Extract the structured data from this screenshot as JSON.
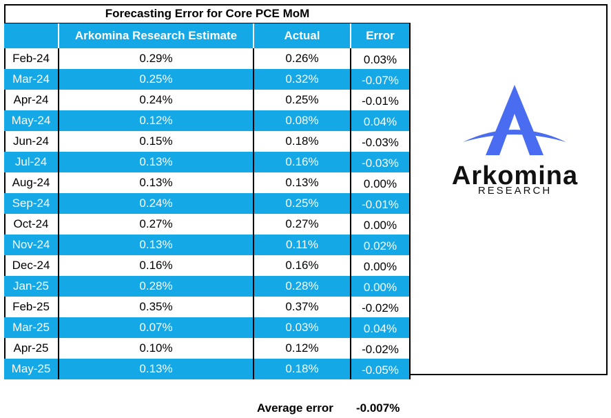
{
  "table": {
    "title": "Forecasting Error for Core PCE MoM",
    "headers": [
      "",
      "Arkomina Research Estimate",
      "Actual",
      "Error"
    ],
    "rows": [
      [
        "Feb-24",
        "0.29%",
        "0.26%",
        "0.03%"
      ],
      [
        "Mar-24",
        "0.25%",
        "0.32%",
        "-0.07%"
      ],
      [
        "Apr-24",
        "0.24%",
        "0.25%",
        "-0.01%"
      ],
      [
        "May-24",
        "0.12%",
        "0.08%",
        "0.04%"
      ],
      [
        "Jun-24",
        "0.15%",
        "0.18%",
        "-0.03%"
      ],
      [
        "Jul-24",
        "0.13%",
        "0.16%",
        "-0.03%"
      ],
      [
        "Aug-24",
        "0.13%",
        "0.13%",
        "0.00%"
      ],
      [
        "Sep-24",
        "0.24%",
        "0.25%",
        "-0.01%"
      ],
      [
        "Oct-24",
        "0.27%",
        "0.27%",
        "0.00%"
      ],
      [
        "Nov-24",
        "0.13%",
        "0.11%",
        "0.02%"
      ],
      [
        "Dec-24",
        "0.16%",
        "0.16%",
        "0.00%"
      ],
      [
        "Jan-25",
        "0.28%",
        "0.28%",
        "0.00%"
      ],
      [
        "Feb-25",
        "0.35%",
        "0.37%",
        "-0.02%"
      ],
      [
        "Mar-25",
        "0.07%",
        "0.03%",
        "0.04%"
      ],
      [
        "Apr-25",
        "0.10%",
        "0.12%",
        "-0.02%"
      ],
      [
        "May-25",
        "0.13%",
        "0.18%",
        "-0.05%"
      ]
    ]
  },
  "logo": {
    "name": "Arkomina",
    "subtitle": "RESEARCH"
  },
  "summary": {
    "label": "Average error",
    "value": "-0.007%"
  },
  "colors": {
    "accent": "#14a8e7",
    "logo_blue": "#4a6cf0"
  }
}
